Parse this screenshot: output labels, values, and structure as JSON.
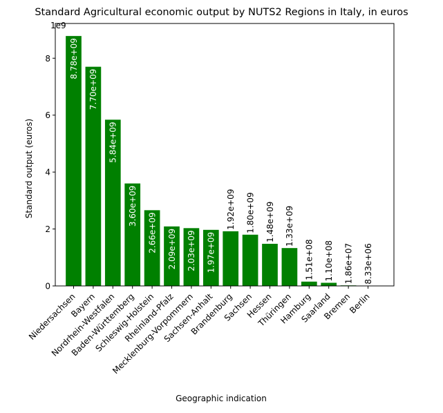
{
  "chart_data": {
    "type": "bar",
    "title": "Standard Agricultural economic output by NUTS2 Regions in Italy, in euros",
    "xlabel": "Geographic indication",
    "ylabel": "Standard output (euros)",
    "y_offset_label": "1e9",
    "y_scale": 1000000000,
    "ylim": [
      0,
      9220000000
    ],
    "yticks": [
      0,
      2,
      4,
      6,
      8
    ],
    "bar_color": "#008000",
    "grid": false,
    "categories": [
      "Niedersachsen",
      "Bayern",
      "Nordrhein-Westfalen",
      "Baden-Württemberg",
      "Schleswig-Holstein",
      "Rheinland-Pfalz",
      "Mecklenburg-Vorpommern",
      "Sachsen-Anhalt",
      "Brandenburg",
      "Sachsen",
      "Hessen",
      "Thüringen",
      "Hamburg",
      "Saarland",
      "Bremen",
      "Berlin"
    ],
    "values": [
      8780000000,
      7700000000,
      5840000000,
      3600000000,
      2660000000,
      2090000000,
      2030000000,
      1970000000,
      1920000000,
      1800000000,
      1480000000,
      1330000000,
      151000000,
      110000000,
      18600000,
      8330000
    ],
    "data_labels": [
      "8.78e+09",
      "7.70e+09",
      "5.84e+09",
      "3.60e+09",
      "2.66e+09",
      "2.09e+09",
      "2.03e+09",
      "1.97e+09",
      "1.92e+09",
      "1.80e+09",
      "1.48e+09",
      "1.33e+09",
      "1.51e+08",
      "1.10e+08",
      "1.86e+07",
      "8.33e+06"
    ]
  }
}
